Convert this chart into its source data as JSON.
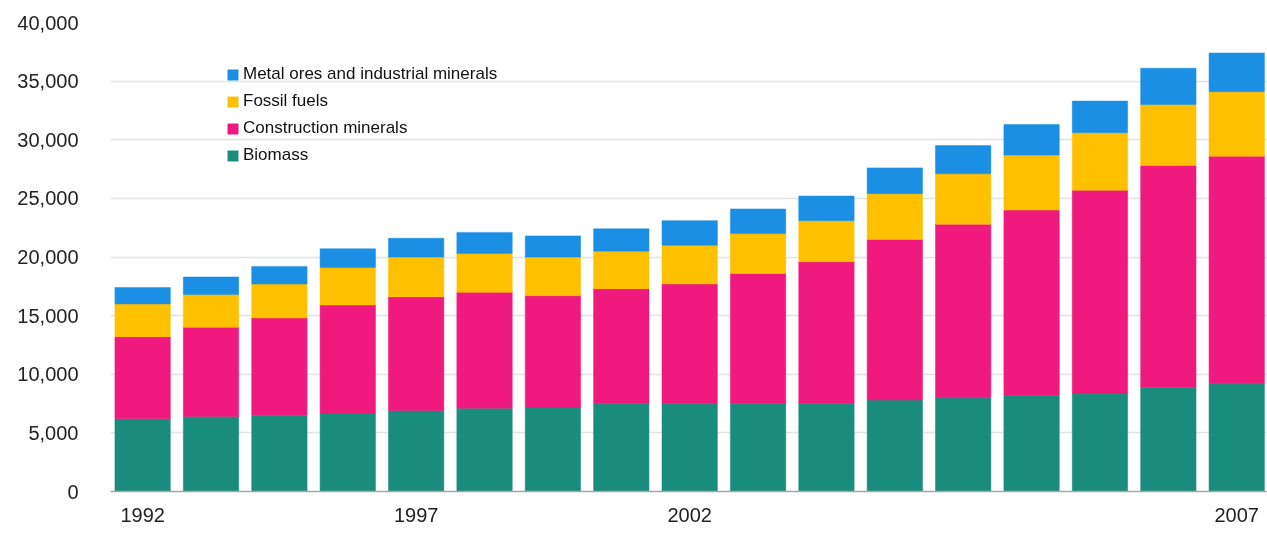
{
  "chart_data": {
    "type": "bar",
    "stacked": true,
    "categories": [
      "1992",
      null,
      null,
      null,
      "1997",
      null,
      null,
      null,
      "2002",
      null,
      null,
      null,
      null,
      null,
      null,
      null,
      "2007"
    ],
    "series": [
      {
        "name": "Biomass",
        "color": "#1a8c7c",
        "values": [
          6200,
          6400,
          6500,
          6700,
          6900,
          7100,
          7200,
          7500,
          7500,
          7500,
          7500,
          7800,
          8000,
          8200,
          8400,
          8900,
          9200
        ]
      },
      {
        "name": "Construction minerals",
        "color": "#f0197d",
        "values": [
          7000,
          7600,
          8300,
          9200,
          9700,
          9900,
          9500,
          9800,
          10200,
          11100,
          12100,
          13700,
          14800,
          15800,
          17300,
          18900,
          19400
        ]
      },
      {
        "name": "Fossil fuels",
        "color": "#ffc000",
        "values": [
          2800,
          2800,
          2900,
          3200,
          3400,
          3300,
          3300,
          3200,
          3300,
          3400,
          3500,
          3900,
          4300,
          4700,
          4900,
          5200,
          5500
        ]
      },
      {
        "name": "Metal ores and industrial minerals",
        "color": "#1a8fe3",
        "values": [
          1400,
          1500,
          1500,
          1600,
          1600,
          1800,
          1800,
          1900,
          2100,
          2100,
          2100,
          2200,
          2400,
          2600,
          2700,
          3100,
          3300
        ]
      }
    ],
    "ylim": [
      0,
      40000
    ],
    "yticks": [
      0,
      {
        "value": 5000,
        "label": "5,000"
      },
      {
        "value": 10000,
        "label": "10,000"
      },
      {
        "value": 15000,
        "label": "15,000"
      },
      {
        "value": 20000,
        "label": "20,000"
      },
      {
        "value": 25000,
        "label": "25,000"
      },
      {
        "value": 30000,
        "label": "30,000"
      },
      {
        "value": 35000,
        "label": "35,000"
      },
      {
        "value": 40000,
        "label": "40,000"
      }
    ],
    "grid": "y",
    "legend": "top left"
  }
}
